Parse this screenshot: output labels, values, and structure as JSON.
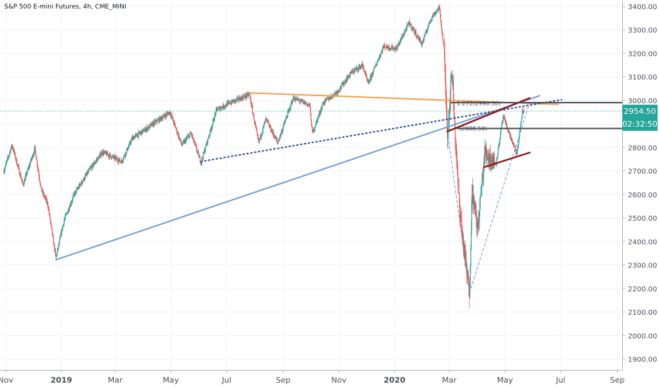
{
  "title": "S&P 500 E-mini Futures, 4h, CME_MINI",
  "price_tags": {
    "last_price": "2954.50",
    "countdown": "02:32:50"
  },
  "annotations": {
    "fib_upper": "1.272(2990.50)",
    "fib_lower": "(2880.50)"
  },
  "colors": {
    "up": "#26a69a",
    "down": "#ef5350",
    "orange_trendline": "#f5a04a",
    "blue_trendline": "#6f9fdb",
    "dotted_trendline": "#2849a6",
    "red_trendline": "#8e1a1a",
    "horizontal_level": "#4b5057",
    "last_price_line": "#26a69a"
  },
  "chart_data": {
    "type": "line",
    "title": "S&P 500 E-mini Futures, 4h, CME_MINI",
    "xlabel": "",
    "ylabel": "",
    "y_axis_side": "right",
    "ylim": [
      1860,
      3430
    ],
    "grid": true,
    "x_ticks": [
      {
        "label": "Nov",
        "date": "2018-11-01"
      },
      {
        "label": "2019",
        "date": "2019-01-01"
      },
      {
        "label": "Mar",
        "date": "2019-03-01"
      },
      {
        "label": "May",
        "date": "2019-05-01"
      },
      {
        "label": "Jul",
        "date": "2019-07-01"
      },
      {
        "label": "Sep",
        "date": "2019-09-01"
      },
      {
        "label": "Nov",
        "date": "2019-11-01"
      },
      {
        "label": "2020",
        "date": "2020-01-01"
      },
      {
        "label": "Mar",
        "date": "2020-03-01"
      },
      {
        "label": "May",
        "date": "2020-05-01"
      },
      {
        "label": "Jul",
        "date": "2020-07-01"
      },
      {
        "label": "Sep",
        "date": "2020-09-01"
      }
    ],
    "y_ticks": [
      "3400.00",
      "3300.00",
      "3200.00",
      "3100.00",
      "3000.00",
      "2900.00",
      "2800.00",
      "2700.00",
      "2600.00",
      "2500.00",
      "2400.00",
      "2300.00",
      "2200.00",
      "2100.00",
      "2000.00",
      "1900.00"
    ],
    "series": [
      {
        "values": [
          {
            "x": "2018-10-30",
            "y": 2700
          },
          {
            "x": "2018-11-08",
            "y": 2810
          },
          {
            "x": "2018-11-20",
            "y": 2640
          },
          {
            "x": "2018-12-03",
            "y": 2795
          },
          {
            "x": "2018-12-10",
            "y": 2620
          },
          {
            "x": "2018-12-17",
            "y": 2560
          },
          {
            "x": "2018-12-26",
            "y": 2330
          },
          {
            "x": "2019-01-04",
            "y": 2490
          },
          {
            "x": "2019-01-15",
            "y": 2600
          },
          {
            "x": "2019-02-01",
            "y": 2705
          },
          {
            "x": "2019-02-15",
            "y": 2780
          },
          {
            "x": "2019-03-08",
            "y": 2740
          },
          {
            "x": "2019-03-20",
            "y": 2840
          },
          {
            "x": "2019-04-01",
            "y": 2870
          },
          {
            "x": "2019-04-15",
            "y": 2910
          },
          {
            "x": "2019-04-30",
            "y": 2950
          },
          {
            "x": "2019-05-13",
            "y": 2810
          },
          {
            "x": "2019-05-23",
            "y": 2860
          },
          {
            "x": "2019-06-03",
            "y": 2735
          },
          {
            "x": "2019-06-20",
            "y": 2960
          },
          {
            "x": "2019-07-05",
            "y": 2990
          },
          {
            "x": "2019-07-26",
            "y": 3025
          },
          {
            "x": "2019-08-05",
            "y": 2820
          },
          {
            "x": "2019-08-13",
            "y": 2920
          },
          {
            "x": "2019-08-26",
            "y": 2820
          },
          {
            "x": "2019-09-12",
            "y": 3010
          },
          {
            "x": "2019-09-30",
            "y": 2980
          },
          {
            "x": "2019-10-03",
            "y": 2860
          },
          {
            "x": "2019-10-15",
            "y": 2990
          },
          {
            "x": "2019-10-31",
            "y": 3040
          },
          {
            "x": "2019-11-15",
            "y": 3120
          },
          {
            "x": "2019-11-27",
            "y": 3150
          },
          {
            "x": "2019-12-03",
            "y": 3070
          },
          {
            "x": "2019-12-20",
            "y": 3230
          },
          {
            "x": "2020-01-03",
            "y": 3220
          },
          {
            "x": "2020-01-17",
            "y": 3330
          },
          {
            "x": "2020-01-31",
            "y": 3240
          },
          {
            "x": "2020-02-10",
            "y": 3350
          },
          {
            "x": "2020-02-19",
            "y": 3395
          },
          {
            "x": "2020-02-24",
            "y": 3225
          },
          {
            "x": "2020-02-28",
            "y": 2860
          },
          {
            "x": "2020-03-04",
            "y": 3130
          },
          {
            "x": "2020-03-09",
            "y": 2740
          },
          {
            "x": "2020-03-12",
            "y": 2560
          },
          {
            "x": "2020-03-16",
            "y": 2400
          },
          {
            "x": "2020-03-23",
            "y": 2180
          },
          {
            "x": "2020-03-26",
            "y": 2620
          },
          {
            "x": "2020-04-01",
            "y": 2450
          },
          {
            "x": "2020-04-09",
            "y": 2780
          },
          {
            "x": "2020-04-21",
            "y": 2730
          },
          {
            "x": "2020-04-29",
            "y": 2930
          },
          {
            "x": "2020-05-14",
            "y": 2770
          },
          {
            "x": "2020-05-20",
            "y": 2950
          },
          {
            "x": "2020-05-22",
            "y": 2954.5
          }
        ]
      }
    ],
    "drawings": [
      {
        "kind": "trendline",
        "style": "solid",
        "color": "orange",
        "from": {
          "x": "2019-07-26",
          "y": 3032
        },
        "to": {
          "x": "2020-06-28",
          "y": 2983
        }
      },
      {
        "kind": "trendline",
        "style": "solid",
        "color": "blue",
        "from": {
          "x": "2018-12-26",
          "y": 2322
        },
        "to": {
          "x": "2020-06-08",
          "y": 3020
        }
      },
      {
        "kind": "trendline",
        "style": "dotted",
        "color": "navy",
        "from": {
          "x": "2019-06-03",
          "y": 2740
        },
        "to": {
          "x": "2020-07-02",
          "y": 3003
        }
      },
      {
        "kind": "trendline",
        "style": "solid",
        "color": "dark-red",
        "from": {
          "x": "2020-02-28",
          "y": 2868
        },
        "to": {
          "x": "2020-05-28",
          "y": 3010
        }
      },
      {
        "kind": "trendline",
        "style": "solid",
        "color": "dark-red",
        "from": {
          "x": "2020-04-08",
          "y": 2716
        },
        "to": {
          "x": "2020-05-28",
          "y": 2778
        }
      },
      {
        "kind": "trendline",
        "style": "dashed",
        "color": "light-blue",
        "from": {
          "x": "2020-02-28",
          "y": 2868
        },
        "to": {
          "x": "2020-03-23",
          "y": 2180
        }
      },
      {
        "kind": "trendline",
        "style": "dashed",
        "color": "light-blue",
        "from": {
          "x": "2020-03-23",
          "y": 2180
        },
        "to": {
          "x": "2020-05-28",
          "y": 2990
        }
      },
      {
        "kind": "horizontal",
        "level": 2990.5,
        "from": "2020-03-03",
        "label_ref": "annotations.fib_upper"
      },
      {
        "kind": "horizontal",
        "level": 2880.5,
        "from": "2020-03-09",
        "label_ref": "annotations.fib_lower"
      },
      {
        "kind": "last_price",
        "level": 2954.5
      }
    ]
  }
}
